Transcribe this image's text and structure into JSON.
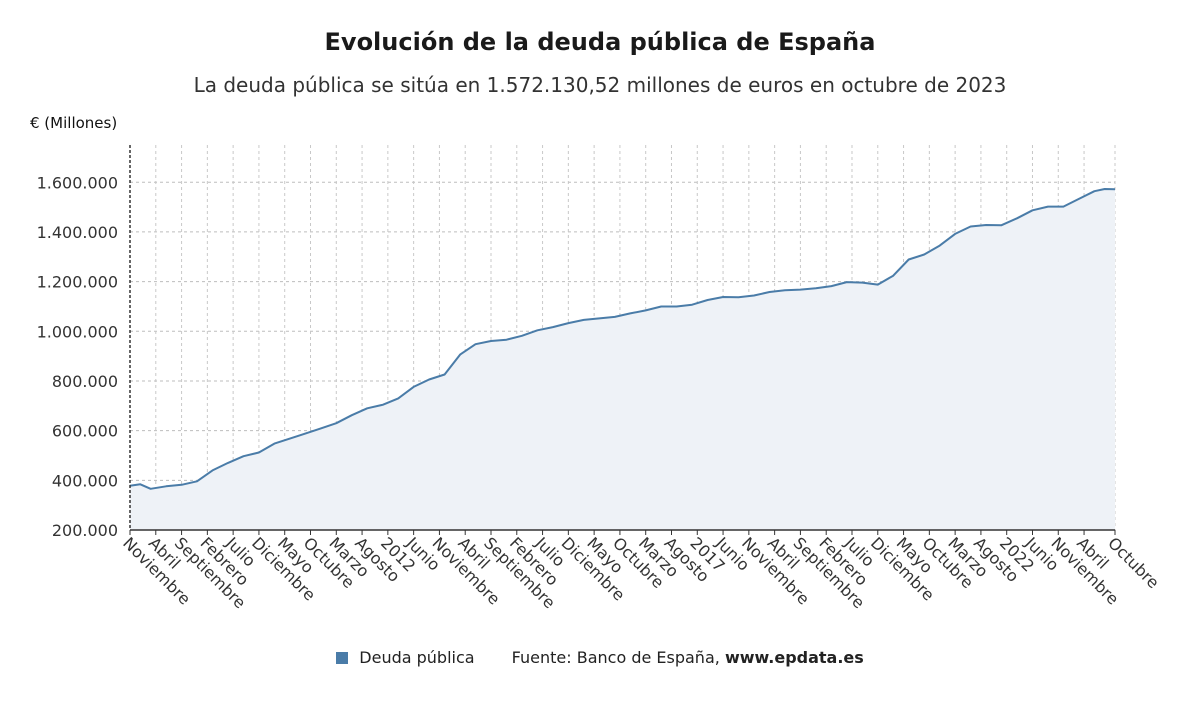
{
  "chart_data": {
    "type": "area",
    "title": "Evolución de la deuda pública de España",
    "subtitle": "La deuda pública se sitúa en 1.572.130,52 millones de euros en octubre de 2023",
    "ylabel": "€ (Millones)",
    "ylim": [
      200000,
      1750000
    ],
    "yticks": [
      200000,
      400000,
      600000,
      800000,
      1000000,
      1200000,
      1400000,
      1600000
    ],
    "ytick_labels": [
      "200.000",
      "400.000",
      "600.000",
      "800.000",
      "1.000.000",
      "1.200.000",
      "1.400.000",
      "1.600.000"
    ],
    "x_start": "2007-11",
    "x_end": "2023-10",
    "xticks": [
      {
        "date": "2007-11",
        "label": "Noviembre"
      },
      {
        "date": "2008-04",
        "label": "Abril"
      },
      {
        "date": "2008-09",
        "label": "Septiembre"
      },
      {
        "date": "2009-02",
        "label": "Febrero"
      },
      {
        "date": "2009-07",
        "label": "Julio"
      },
      {
        "date": "2009-12",
        "label": "Diciembre"
      },
      {
        "date": "2010-05",
        "label": "Mayo"
      },
      {
        "date": "2010-10",
        "label": "Octubre"
      },
      {
        "date": "2011-03",
        "label": "Marzo"
      },
      {
        "date": "2011-08",
        "label": "Agosto"
      },
      {
        "date": "2012-01",
        "label": "2012"
      },
      {
        "date": "2012-06",
        "label": "Junio"
      },
      {
        "date": "2012-11",
        "label": "Noviembre"
      },
      {
        "date": "2013-04",
        "label": "Abril"
      },
      {
        "date": "2013-09",
        "label": "Septiembre"
      },
      {
        "date": "2014-02",
        "label": "Febrero"
      },
      {
        "date": "2014-07",
        "label": "Julio"
      },
      {
        "date": "2014-12",
        "label": "Diciembre"
      },
      {
        "date": "2015-05",
        "label": "Mayo"
      },
      {
        "date": "2015-10",
        "label": "Octubre"
      },
      {
        "date": "2016-03",
        "label": "Marzo"
      },
      {
        "date": "2016-08",
        "label": "Agosto"
      },
      {
        "date": "2017-01",
        "label": "2017"
      },
      {
        "date": "2017-06",
        "label": "Junio"
      },
      {
        "date": "2017-11",
        "label": "Noviembre"
      },
      {
        "date": "2018-04",
        "label": "Abril"
      },
      {
        "date": "2018-09",
        "label": "Septiembre"
      },
      {
        "date": "2019-02",
        "label": "Febrero"
      },
      {
        "date": "2019-07",
        "label": "Julio"
      },
      {
        "date": "2019-12",
        "label": "Diciembre"
      },
      {
        "date": "2020-05",
        "label": "Mayo"
      },
      {
        "date": "2020-10",
        "label": "Octubre"
      },
      {
        "date": "2021-03",
        "label": "Marzo"
      },
      {
        "date": "2021-08",
        "label": "Agosto"
      },
      {
        "date": "2022-01",
        "label": "2022"
      },
      {
        "date": "2022-06",
        "label": "Junio"
      },
      {
        "date": "2022-11",
        "label": "Noviembre"
      },
      {
        "date": "2023-04",
        "label": "Abril"
      },
      {
        "date": "2023-10",
        "label": "Octubre"
      }
    ],
    "grid": true,
    "legend_position": "bottom",
    "series": [
      {
        "name": "Deuda pública",
        "color": "#4a7ca8",
        "fill": "#eef2f7",
        "points": [
          [
            "2007-11",
            378000
          ],
          [
            "2008-01",
            384000
          ],
          [
            "2008-03",
            366000
          ],
          [
            "2008-06",
            376000
          ],
          [
            "2008-09",
            382000
          ],
          [
            "2008-12",
            396000
          ],
          [
            "2009-03",
            440000
          ],
          [
            "2009-06",
            470000
          ],
          [
            "2009-09",
            497000
          ],
          [
            "2009-12",
            512000
          ],
          [
            "2010-03",
            548000
          ],
          [
            "2010-06",
            568000
          ],
          [
            "2010-09",
            588000
          ],
          [
            "2010-12",
            609000
          ],
          [
            "2011-03",
            630000
          ],
          [
            "2011-06",
            662000
          ],
          [
            "2011-09",
            690000
          ],
          [
            "2011-12",
            704000
          ],
          [
            "2012-03",
            730000
          ],
          [
            "2012-06",
            776000
          ],
          [
            "2012-09",
            806000
          ],
          [
            "2012-12",
            826000
          ],
          [
            "2013-03",
            906000
          ],
          [
            "2013-06",
            948000
          ],
          [
            "2013-09",
            961000
          ],
          [
            "2013-12",
            966000
          ],
          [
            "2014-03",
            982000
          ],
          [
            "2014-06",
            1004000
          ],
          [
            "2014-09",
            1017000
          ],
          [
            "2014-12",
            1033000
          ],
          [
            "2015-03",
            1046000
          ],
          [
            "2015-06",
            1052000
          ],
          [
            "2015-09",
            1058000
          ],
          [
            "2015-12",
            1072000
          ],
          [
            "2016-03",
            1084000
          ],
          [
            "2016-06",
            1100000
          ],
          [
            "2016-09",
            1100000
          ],
          [
            "2016-12",
            1107000
          ],
          [
            "2017-03",
            1126000
          ],
          [
            "2017-06",
            1138000
          ],
          [
            "2017-09",
            1137000
          ],
          [
            "2017-12",
            1144000
          ],
          [
            "2018-03",
            1158000
          ],
          [
            "2018-06",
            1165000
          ],
          [
            "2018-09",
            1168000
          ],
          [
            "2018-12",
            1173000
          ],
          [
            "2019-03",
            1182000
          ],
          [
            "2019-06",
            1198000
          ],
          [
            "2019-09",
            1196000
          ],
          [
            "2019-12",
            1188000
          ],
          [
            "2020-03",
            1224000
          ],
          [
            "2020-06",
            1289000
          ],
          [
            "2020-09",
            1309000
          ],
          [
            "2020-12",
            1345000
          ],
          [
            "2021-03",
            1392000
          ],
          [
            "2021-06",
            1422000
          ],
          [
            "2021-09",
            1428000
          ],
          [
            "2021-12",
            1427000
          ],
          [
            "2022-03",
            1455000
          ],
          [
            "2022-06",
            1487000
          ],
          [
            "2022-09",
            1502000
          ],
          [
            "2022-12",
            1502000
          ],
          [
            "2023-03",
            1533000
          ],
          [
            "2023-06",
            1564000
          ],
          [
            "2023-08",
            1573000
          ],
          [
            "2023-10",
            1572131
          ]
        ]
      }
    ]
  },
  "footer": {
    "legend_label": "Deuda pública",
    "source_label": "Fuente: Banco de España,",
    "source_site": "www.epdata.es"
  }
}
